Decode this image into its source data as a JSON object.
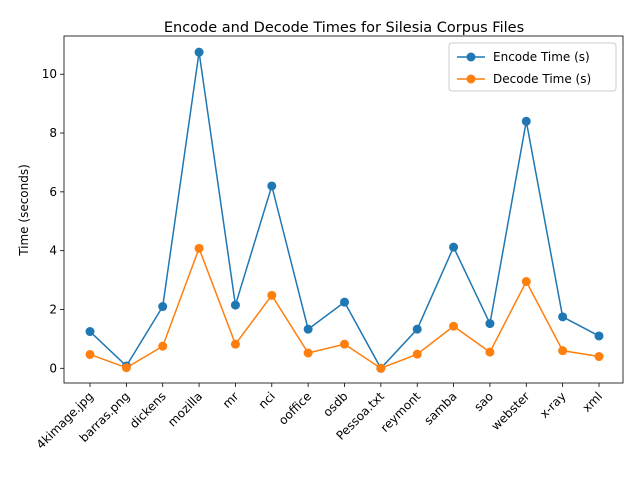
{
  "chart_data": {
    "type": "line",
    "title": "Encode and Decode Times for Silesia Corpus Files",
    "xlabel": "",
    "ylabel": "Time (seconds)",
    "ylim": [
      -0.5,
      11.3
    ],
    "yticks": [
      0,
      2,
      4,
      6,
      8,
      10
    ],
    "categories": [
      "4kimage.jpg",
      "barras.png",
      "dickens",
      "mozilla",
      "mr",
      "nci",
      "ooffice",
      "osdb",
      "Pessoa.txt",
      "reymont",
      "samba",
      "sao",
      "webster",
      "x-ray",
      "xml"
    ],
    "series": [
      {
        "name": "Encode Time (s)",
        "color": "#1f77b4",
        "values": [
          1.25,
          0.08,
          2.1,
          10.75,
          2.15,
          6.2,
          1.33,
          2.25,
          0.0,
          1.33,
          4.12,
          1.52,
          8.4,
          1.75,
          1.1
        ]
      },
      {
        "name": "Decode Time (s)",
        "color": "#ff7f0e",
        "values": [
          0.47,
          0.02,
          0.75,
          4.08,
          0.82,
          2.48,
          0.52,
          0.82,
          0.0,
          0.48,
          1.43,
          0.55,
          2.95,
          0.6,
          0.4
        ]
      }
    ],
    "legend_position": "upper right",
    "grid": false
  }
}
